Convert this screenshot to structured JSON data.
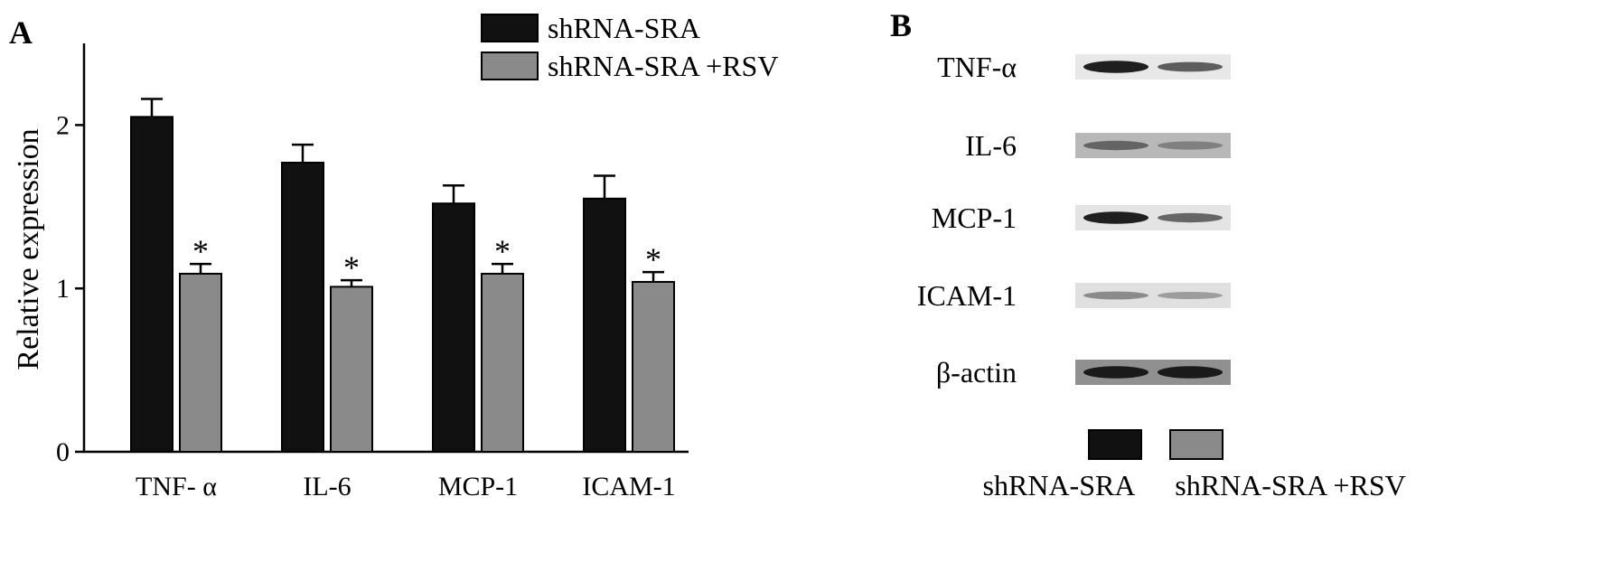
{
  "panels": {
    "a_label": "A",
    "b_label": "B"
  },
  "chart_data": {
    "type": "bar",
    "categories": [
      "TNF- α",
      "IL-6",
      "MCP-1",
      "ICAM-1"
    ],
    "series": [
      {
        "name": "shRNA-SRA",
        "values": [
          2.05,
          1.77,
          1.52,
          1.55
        ],
        "errors": [
          0.11,
          0.11,
          0.11,
          0.14
        ],
        "color": "#111111",
        "significance": [
          "",
          "",
          "",
          ""
        ]
      },
      {
        "name": "shRNA-SRA +RSV",
        "values": [
          1.09,
          1.01,
          1.09,
          1.04
        ],
        "errors": [
          0.06,
          0.04,
          0.06,
          0.06
        ],
        "color": "#8a8a8a",
        "significance": [
          "*",
          "*",
          "*",
          "*"
        ]
      }
    ],
    "ylabel": "Relative expression",
    "xlabel": "",
    "ylim": [
      0,
      2.5
    ],
    "yticks": [
      0,
      1,
      2
    ],
    "legend_position": "top-right"
  },
  "blot": {
    "rows": [
      {
        "label": "TNF-α",
        "intensity": [
          0.95,
          0.6
        ],
        "background": "#e8e8e8"
      },
      {
        "label": "IL-6",
        "intensity": [
          0.55,
          0.4
        ],
        "background": "#b8b8b8"
      },
      {
        "label": "MCP-1",
        "intensity": [
          0.95,
          0.55
        ],
        "background": "#e4e4e4"
      },
      {
        "label": "ICAM-1",
        "intensity": [
          0.35,
          0.25
        ],
        "background": "#e0e0e0"
      },
      {
        "label": "β-actin",
        "intensity": [
          0.95,
          0.95
        ],
        "background": "#909090"
      }
    ],
    "legend": [
      {
        "label": "shRNA-SRA",
        "color": "#111111"
      },
      {
        "label": "shRNA-SRA +RSV",
        "color": "#8a8a8a"
      }
    ]
  }
}
